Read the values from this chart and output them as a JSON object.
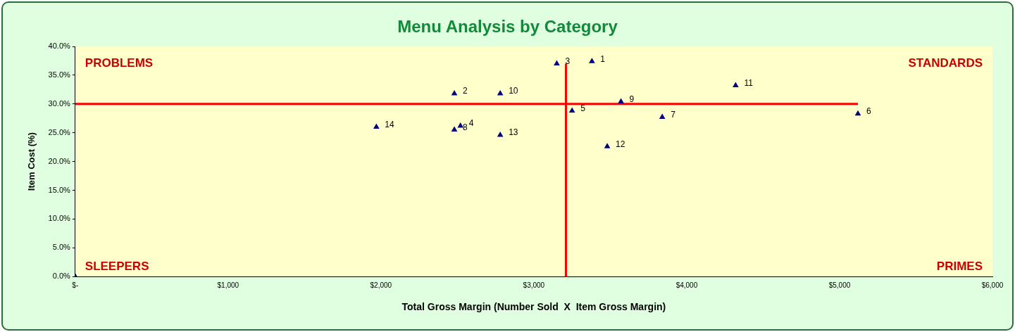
{
  "chart_data": {
    "type": "scatter",
    "title": "Menu Analysis by Category",
    "xlabel": "Total Gross Margin (Number Sold  X  Item Gross Margin)",
    "ylabel": "Item Cost (%)",
    "xlim": [
      0,
      6000
    ],
    "xticks": [
      {
        "value": 0,
        "label": "$-"
      },
      {
        "value": 1000,
        "label": "$1,000"
      },
      {
        "value": 2000,
        "label": "$2,000"
      },
      {
        "value": 3000,
        "label": "$3,000"
      },
      {
        "value": 4000,
        "label": "$4,000"
      },
      {
        "value": 5000,
        "label": "$5,000"
      },
      {
        "value": 6000,
        "label": "$6,000"
      }
    ],
    "ylim": [
      0,
      40
    ],
    "yticks": [
      {
        "value": 0,
        "label": "0.0%"
      },
      {
        "value": 5,
        "label": "5.0%"
      },
      {
        "value": 10,
        "label": "10.0%"
      },
      {
        "value": 15,
        "label": "15.0%"
      },
      {
        "value": 20,
        "label": "20.0%"
      },
      {
        "value": 25,
        "label": "25.0%"
      },
      {
        "value": 30,
        "label": "30.0%"
      },
      {
        "value": 35,
        "label": "35.0%"
      },
      {
        "value": 40,
        "label": "40.0%"
      }
    ],
    "grid": false,
    "legend": false,
    "marker": "triangle",
    "series": [
      {
        "type": "scatter",
        "color": "#000080",
        "x": [
          3380,
          2480,
          3150,
          2520,
          3250,
          5120,
          3840,
          2480,
          3570,
          2780,
          4320,
          3480,
          2780,
          1970,
          0
        ],
        "values": [
          37.4,
          31.8,
          37.0,
          26.2,
          28.8,
          28.3,
          27.7,
          25.5,
          30.4,
          31.8,
          33.2,
          22.6,
          24.6,
          26.0,
          0
        ]
      },
      {
        "type": "line",
        "color": "#ff0000",
        "marker": "none",
        "x": [
          0,
          5120
        ],
        "values": [
          30,
          30
        ]
      },
      {
        "type": "line",
        "color": "#ff0000",
        "marker": "none",
        "x": [
          3210,
          3210
        ],
        "values": [
          0,
          37
        ]
      }
    ],
    "annotations": [
      "PROBLEMS",
      "STANDARDS",
      "SLEEPERS",
      "PRIMES",
      {
        "text": "1",
        "x": 3380,
        "y": 37.4
      },
      {
        "text": "2",
        "x": 2480,
        "y": 31.8
      },
      {
        "text": "3",
        "x": 3150,
        "y": 37.0
      },
      {
        "text": "4",
        "x": 2520,
        "y": 26.2
      },
      {
        "text": "5",
        "x": 3250,
        "y": 28.8
      },
      {
        "text": "6",
        "x": 5120,
        "y": 28.3
      },
      {
        "text": "7",
        "x": 3840,
        "y": 27.7
      },
      {
        "text": "8",
        "x": 2480,
        "y": 25.5
      },
      {
        "text": "9",
        "x": 3570,
        "y": 30.4
      },
      {
        "text": "10",
        "x": 2780,
        "y": 31.8
      },
      {
        "text": "11",
        "x": 4320,
        "y": 33.2
      },
      {
        "text": "12",
        "x": 3480,
        "y": 22.6
      },
      {
        "text": "13",
        "x": 2780,
        "y": 24.6
      },
      {
        "text": "14",
        "x": 1970,
        "y": 26.0
      }
    ]
  }
}
